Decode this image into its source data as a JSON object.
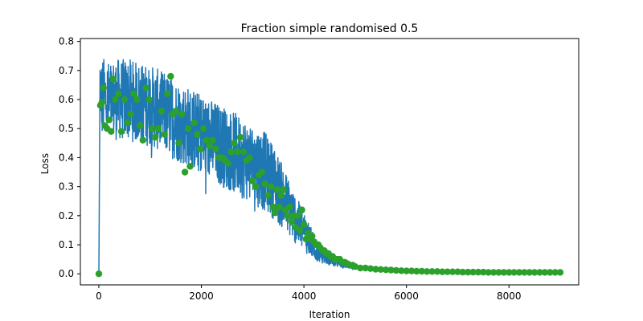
{
  "chart_data": {
    "type": "line",
    "title": "Fraction simple randomised 0.5",
    "xlabel": "Iteration",
    "ylabel": "Loss",
    "xlim": [
      -360,
      9360
    ],
    "ylim": [
      -0.038,
      0.81
    ],
    "x_ticks": [
      0,
      2000,
      4000,
      6000,
      8000
    ],
    "x_tick_labels": [
      "0",
      "2000",
      "4000",
      "6000",
      "8000"
    ],
    "y_ticks": [
      0.0,
      0.1,
      0.2,
      0.3,
      0.4,
      0.5,
      0.6,
      0.7,
      0.8
    ],
    "y_tick_labels": [
      "0.0",
      "0.1",
      "0.2",
      "0.3",
      "0.4",
      "0.5",
      "0.6",
      "0.7",
      "0.8"
    ],
    "grid": false,
    "legend": "none",
    "colors": {
      "train": "#1f77b4",
      "eval": "#2ca02c"
    },
    "series": [
      {
        "style": "line",
        "color": "#1f77b4",
        "x": [
          0,
          20,
          40,
          60,
          80,
          120,
          160,
          200,
          300,
          400,
          500,
          600,
          700,
          800,
          900,
          1000,
          1100,
          1200,
          1300,
          1400,
          1500,
          1600,
          1700,
          1800,
          1900,
          2000,
          2100,
          2200,
          2300,
          2400,
          2500,
          2600,
          2700,
          2800,
          2900,
          3000,
          3100,
          3200,
          3300,
          3400,
          3500,
          3600,
          3700,
          3800,
          3900,
          4000,
          4100,
          4200,
          4300,
          4400,
          4500,
          4600,
          4700,
          4800,
          5000,
          5200,
          5400,
          5600,
          5800,
          6000,
          6500,
          7000,
          7500,
          8000,
          8500,
          9000
        ],
        "y": [
          0.0,
          0.71,
          0.62,
          0.6,
          0.61,
          0.6,
          0.6,
          0.59,
          0.6,
          0.6,
          0.6,
          0.6,
          0.59,
          0.59,
          0.58,
          0.58,
          0.57,
          0.56,
          0.55,
          0.54,
          0.53,
          0.52,
          0.51,
          0.5,
          0.49,
          0.48,
          0.47,
          0.46,
          0.45,
          0.44,
          0.43,
          0.42,
          0.41,
          0.4,
          0.39,
          0.38,
          0.37,
          0.36,
          0.34,
          0.32,
          0.29,
          0.26,
          0.23,
          0.2,
          0.17,
          0.15,
          0.12,
          0.09,
          0.07,
          0.06,
          0.05,
          0.04,
          0.035,
          0.03,
          0.025,
          0.02,
          0.017,
          0.015,
          0.013,
          0.012,
          0.01,
          0.009,
          0.008,
          0.007,
          0.007,
          0.006
        ],
        "noise_band": [
          0.0,
          0.0,
          0.14,
          0.14,
          0.14,
          0.14,
          0.14,
          0.14,
          0.14,
          0.14,
          0.14,
          0.14,
          0.14,
          0.14,
          0.14,
          0.14,
          0.14,
          0.14,
          0.14,
          0.14,
          0.14,
          0.14,
          0.14,
          0.14,
          0.14,
          0.14,
          0.14,
          0.14,
          0.14,
          0.14,
          0.14,
          0.14,
          0.14,
          0.14,
          0.14,
          0.14,
          0.14,
          0.14,
          0.13,
          0.13,
          0.12,
          0.11,
          0.1,
          0.09,
          0.08,
          0.07,
          0.06,
          0.04,
          0.03,
          0.025,
          0.02,
          0.015,
          0.012,
          0.01,
          0.008,
          0.006,
          0.005,
          0.004,
          0.003,
          0.003,
          0.002,
          0.002,
          0.002,
          0.002,
          0.002,
          0.002
        ]
      },
      {
        "style": "markers",
        "color": "#2ca02c",
        "x": [
          0,
          30,
          60,
          90,
          120,
          160,
          200,
          240,
          280,
          320,
          380,
          440,
          500,
          560,
          620,
          680,
          740,
          800,
          860,
          920,
          980,
          1040,
          1100,
          1160,
          1220,
          1280,
          1340,
          1400,
          1440,
          1500,
          1560,
          1620,
          1680,
          1740,
          1780,
          1860,
          1920,
          1980,
          2040,
          2100,
          2160,
          2220,
          2280,
          2340,
          2400,
          2460,
          2520,
          2580,
          2640,
          2700,
          2760,
          2820,
          2880,
          2940,
          3000,
          3060,
          3120,
          3180,
          3240,
          3300,
          3360,
          3400,
          3440,
          3480,
          3520,
          3560,
          3600,
          3640,
          3680,
          3720,
          3760,
          3800,
          3840,
          3880,
          3920,
          3960,
          4000,
          4040,
          4080,
          4120,
          4160,
          4200,
          4240,
          4280,
          4320,
          4360,
          4400,
          4440,
          4480,
          4520,
          4560,
          4600,
          4650,
          4700,
          4750,
          4800,
          4850,
          4900,
          4950,
          5000,
          5100,
          5200,
          5300,
          5400,
          5500,
          5600,
          5700,
          5800,
          5900,
          6000,
          6100,
          6200,
          6300,
          6400,
          6500,
          6600,
          6700,
          6800,
          6900,
          7000,
          7100,
          7200,
          7300,
          7400,
          7500,
          7600,
          7700,
          7800,
          7900,
          8000,
          8100,
          8200,
          8300,
          8400,
          8500,
          8600,
          8700,
          8800,
          8900,
          9000
        ],
        "y": [
          0.0,
          0.58,
          0.59,
          0.64,
          0.51,
          0.5,
          0.53,
          0.49,
          0.67,
          0.6,
          0.62,
          0.49,
          0.6,
          0.52,
          0.55,
          0.62,
          0.6,
          0.51,
          0.46,
          0.64,
          0.6,
          0.5,
          0.47,
          0.5,
          0.56,
          0.48,
          0.62,
          0.68,
          0.55,
          0.56,
          0.45,
          0.55,
          0.35,
          0.5,
          0.37,
          0.52,
          0.48,
          0.43,
          0.5,
          0.46,
          0.44,
          0.46,
          0.43,
          0.4,
          0.4,
          0.39,
          0.38,
          0.42,
          0.45,
          0.42,
          0.47,
          0.42,
          0.39,
          0.4,
          0.32,
          0.3,
          0.34,
          0.35,
          0.31,
          0.27,
          0.3,
          0.23,
          0.21,
          0.29,
          0.23,
          0.27,
          0.29,
          0.22,
          0.2,
          0.23,
          0.18,
          0.2,
          0.16,
          0.2,
          0.15,
          0.22,
          0.17,
          0.12,
          0.14,
          0.12,
          0.13,
          0.11,
          0.1,
          0.1,
          0.09,
          0.08,
          0.08,
          0.07,
          0.07,
          0.06,
          0.06,
          0.05,
          0.05,
          0.05,
          0.04,
          0.04,
          0.035,
          0.03,
          0.03,
          0.025,
          0.02,
          0.02,
          0.018,
          0.016,
          0.015,
          0.014,
          0.013,
          0.012,
          0.011,
          0.01,
          0.01,
          0.009,
          0.009,
          0.008,
          0.008,
          0.008,
          0.007,
          0.007,
          0.007,
          0.007,
          0.006,
          0.006,
          0.006,
          0.006,
          0.006,
          0.005,
          0.005,
          0.005,
          0.005,
          0.005,
          0.005,
          0.005,
          0.005,
          0.005,
          0.005,
          0.005,
          0.005,
          0.005,
          0.005,
          0.005
        ]
      }
    ]
  }
}
